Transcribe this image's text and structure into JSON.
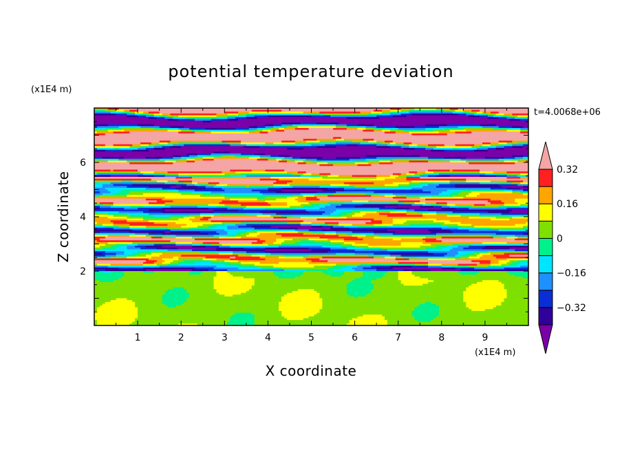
{
  "chart_data": {
    "type": "heatmap",
    "title": "potential temperature deviation",
    "xlabel": "X coordinate",
    "ylabel": "Z coordinate",
    "x_units": "(x1E4 m)",
    "y_units": "(x1E4 m)",
    "time_label": "t=4.0068e+06",
    "xlim": [
      0,
      10
    ],
    "ylim": [
      0,
      8
    ],
    "x_ticks": [
      1,
      2,
      3,
      4,
      5,
      6,
      7,
      8,
      9
    ],
    "y_ticks": [
      2,
      4,
      6
    ],
    "colorbar": {
      "levels": [
        -0.4,
        -0.32,
        -0.24,
        -0.16,
        -0.08,
        0,
        0.08,
        0.16,
        0.24,
        0.32,
        0.4
      ],
      "colors": [
        "#7a00a8",
        "#30009a",
        "#0a2ed6",
        "#1e90ff",
        "#00e5ff",
        "#00f08c",
        "#7fe000",
        "#ffff00",
        "#ffa500",
        "#ff2020",
        "#f4a5a5"
      ],
      "tick_values": [
        -0.32,
        -0.16,
        0,
        0.16,
        0.32
      ],
      "tick_labels": [
        "−0.32",
        "−0.16",
        "0",
        "0.16",
        "0.32"
      ],
      "extend": "both"
    },
    "layers": [
      {
        "z_min": 0.0,
        "z_max": 2.0,
        "pattern": "near-neutral green / yellow-green"
      },
      {
        "z_min": 2.0,
        "z_max": 5.5,
        "pattern": "alternating horizontal bands, all levels"
      },
      {
        "z_min": 5.5,
        "z_max": 8.0,
        "pattern": "alternating purple and pink bands"
      }
    ]
  }
}
